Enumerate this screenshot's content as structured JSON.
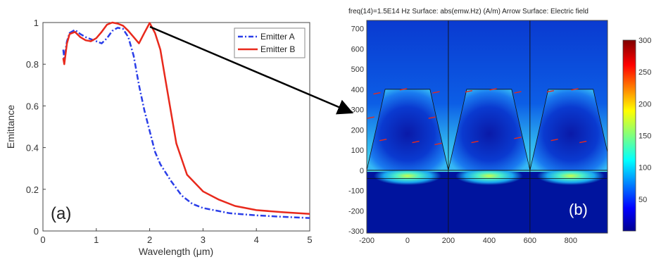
{
  "chart_data": [
    {
      "type": "line",
      "xlabel": "Wavelength (μm)",
      "ylabel": "Emittance",
      "xlim": [
        0,
        5
      ],
      "ylim": [
        0,
        1
      ],
      "xticks": [
        "0",
        "1",
        "2",
        "3",
        "4",
        "5"
      ],
      "yticks": [
        "0",
        "0.2",
        "0.4",
        "0.6",
        "0.8",
        "1"
      ],
      "grid": false,
      "legend_position": "top-right",
      "panel_label": "(a)",
      "series": [
        {
          "name": "Emitter A",
          "color": "#2a3ee8",
          "style": "dash-dot",
          "points": [
            [
              0.38,
              0.87
            ],
            [
              0.4,
              0.83
            ],
            [
              0.45,
              0.91
            ],
            [
              0.5,
              0.95
            ],
            [
              0.6,
              0.965
            ],
            [
              0.7,
              0.945
            ],
            [
              0.8,
              0.93
            ],
            [
              0.9,
              0.92
            ],
            [
              1.0,
              0.91
            ],
            [
              1.1,
              0.9
            ],
            [
              1.2,
              0.925
            ],
            [
              1.3,
              0.96
            ],
            [
              1.4,
              0.975
            ],
            [
              1.5,
              0.97
            ],
            [
              1.6,
              0.93
            ],
            [
              1.7,
              0.84
            ],
            [
              1.8,
              0.7
            ],
            [
              1.9,
              0.58
            ],
            [
              2.0,
              0.48
            ],
            [
              2.1,
              0.38
            ],
            [
              2.2,
              0.32
            ],
            [
              2.4,
              0.24
            ],
            [
              2.6,
              0.17
            ],
            [
              2.8,
              0.13
            ],
            [
              3.0,
              0.11
            ],
            [
              3.5,
              0.085
            ],
            [
              4.0,
              0.075
            ],
            [
              4.5,
              0.068
            ],
            [
              5.0,
              0.062
            ]
          ]
        },
        {
          "name": "Emitter B",
          "color": "#e8291c",
          "style": "solid",
          "points": [
            [
              0.38,
              0.83
            ],
            [
              0.4,
              0.8
            ],
            [
              0.45,
              0.9
            ],
            [
              0.5,
              0.945
            ],
            [
              0.6,
              0.955
            ],
            [
              0.7,
              0.93
            ],
            [
              0.8,
              0.915
            ],
            [
              0.9,
              0.91
            ],
            [
              1.0,
              0.925
            ],
            [
              1.1,
              0.955
            ],
            [
              1.2,
              0.99
            ],
            [
              1.3,
              1.0
            ],
            [
              1.4,
              0.995
            ],
            [
              1.5,
              0.985
            ],
            [
              1.6,
              0.96
            ],
            [
              1.7,
              0.93
            ],
            [
              1.8,
              0.9
            ],
            [
              1.9,
              0.95
            ],
            [
              2.0,
              0.998
            ],
            [
              2.1,
              0.95
            ],
            [
              2.2,
              0.87
            ],
            [
              2.3,
              0.72
            ],
            [
              2.4,
              0.57
            ],
            [
              2.5,
              0.42
            ],
            [
              2.7,
              0.27
            ],
            [
              3.0,
              0.19
            ],
            [
              3.3,
              0.15
            ],
            [
              3.6,
              0.12
            ],
            [
              4.0,
              0.1
            ],
            [
              4.5,
              0.09
            ],
            [
              5.0,
              0.082
            ]
          ]
        }
      ]
    },
    {
      "type": "heatmap",
      "title": "freq(14)=1.5E14 Hz   Surface: abs(emw.Hz) (A/m)   Arrow Surface: Electric field",
      "xlim": [
        -200,
        980
      ],
      "ylim": [
        -310,
        740
      ],
      "xticks": [
        "-200",
        "0",
        "200",
        "400",
        "600",
        "800"
      ],
      "yticks": [
        "700",
        "600",
        "500",
        "400",
        "300",
        "200",
        "100",
        "0",
        "-100",
        "-200",
        "-300"
      ],
      "colorbar": {
        "ticks": [
          "300",
          "250",
          "200",
          "150",
          "100",
          "50"
        ],
        "range": [
          0,
          300
        ]
      },
      "unit_cell_boundaries": [
        200,
        600
      ],
      "trapezoids": [
        {
          "base": [
            -200,
            200
          ],
          "top": [
            -110,
            110
          ],
          "height": 400
        },
        {
          "base": [
            200,
            600
          ],
          "top": [
            290,
            510
          ],
          "height": 400
        },
        {
          "base": [
            600,
            1000
          ],
          "top": [
            690,
            910
          ],
          "height": 400
        }
      ],
      "substrate_interfaces": [
        0,
        -40
      ],
      "panel_label": "(b)"
    }
  ],
  "colors": {
    "background": "#ffffff",
    "axis": "#333333",
    "field_low": "#00008f",
    "field_high": "#7f0000",
    "arrow": "#000000"
  }
}
